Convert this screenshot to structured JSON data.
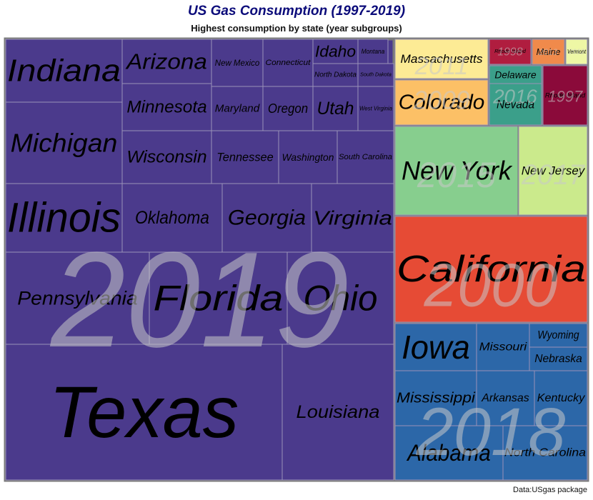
{
  "chart_data": {
    "type": "treemap",
    "title": "US Gas Consumption (1997-2019)",
    "subtitle": "Highest consumption by state (year subgroups)",
    "caption": "Data:USgas package",
    "groups": [
      {
        "year": "2019",
        "color": "#4b3a8c",
        "states": [
          "Texas",
          "Louisiana",
          "Illinois",
          "Pennsylvania",
          "Florida",
          "Ohio",
          "Indiana",
          "Michigan",
          "Oklahoma",
          "Georgia",
          "Virginia",
          "Arizona",
          "Minnesota",
          "Wisconsin",
          "Tennessee",
          "Washington",
          "South Carolina",
          "New Mexico",
          "Connecticut",
          "Maryland",
          "Oregon",
          "Idaho",
          "Montana",
          "North Dakota",
          "South Dakota",
          "Utah",
          "West Virginia"
        ]
      },
      {
        "year": "2000",
        "color": "#e64b35",
        "states": [
          "California"
        ]
      },
      {
        "year": "2018",
        "color": "#2c67a8",
        "states": [
          "Iowa",
          "Missouri",
          "Wyoming",
          "Nebraska",
          "Mississippi",
          "Arkansas",
          "Kentucky",
          "Alabama",
          "North Carolina"
        ]
      },
      {
        "year": "2015",
        "color": "#87ce8e",
        "states": [
          "New York"
        ]
      },
      {
        "year": "2017",
        "color": "#cbea8c",
        "states": [
          "New Jersey"
        ]
      },
      {
        "year": "2009",
        "color": "#fcc066",
        "states": [
          "Colorado"
        ]
      },
      {
        "year": "2011",
        "color": "#fdeb95",
        "states": [
          "Massachusetts"
        ]
      },
      {
        "year": "2016",
        "color": "#3b9f8a",
        "states": [
          "Delaware",
          "Nevada"
        ]
      },
      {
        "year": "1997",
        "color": "#8b0a3a",
        "states": [
          "Rhode Island"
        ]
      },
      {
        "year": "1998",
        "color": "#b01d3f",
        "states": [
          "Rhode Island"
        ]
      },
      {
        "year": "2013",
        "color": "#f08a4b",
        "states": [
          "Maine"
        ]
      },
      {
        "year": "2012",
        "color": "#eef7a5",
        "states": [
          "Vermont"
        ]
      }
    ]
  }
}
